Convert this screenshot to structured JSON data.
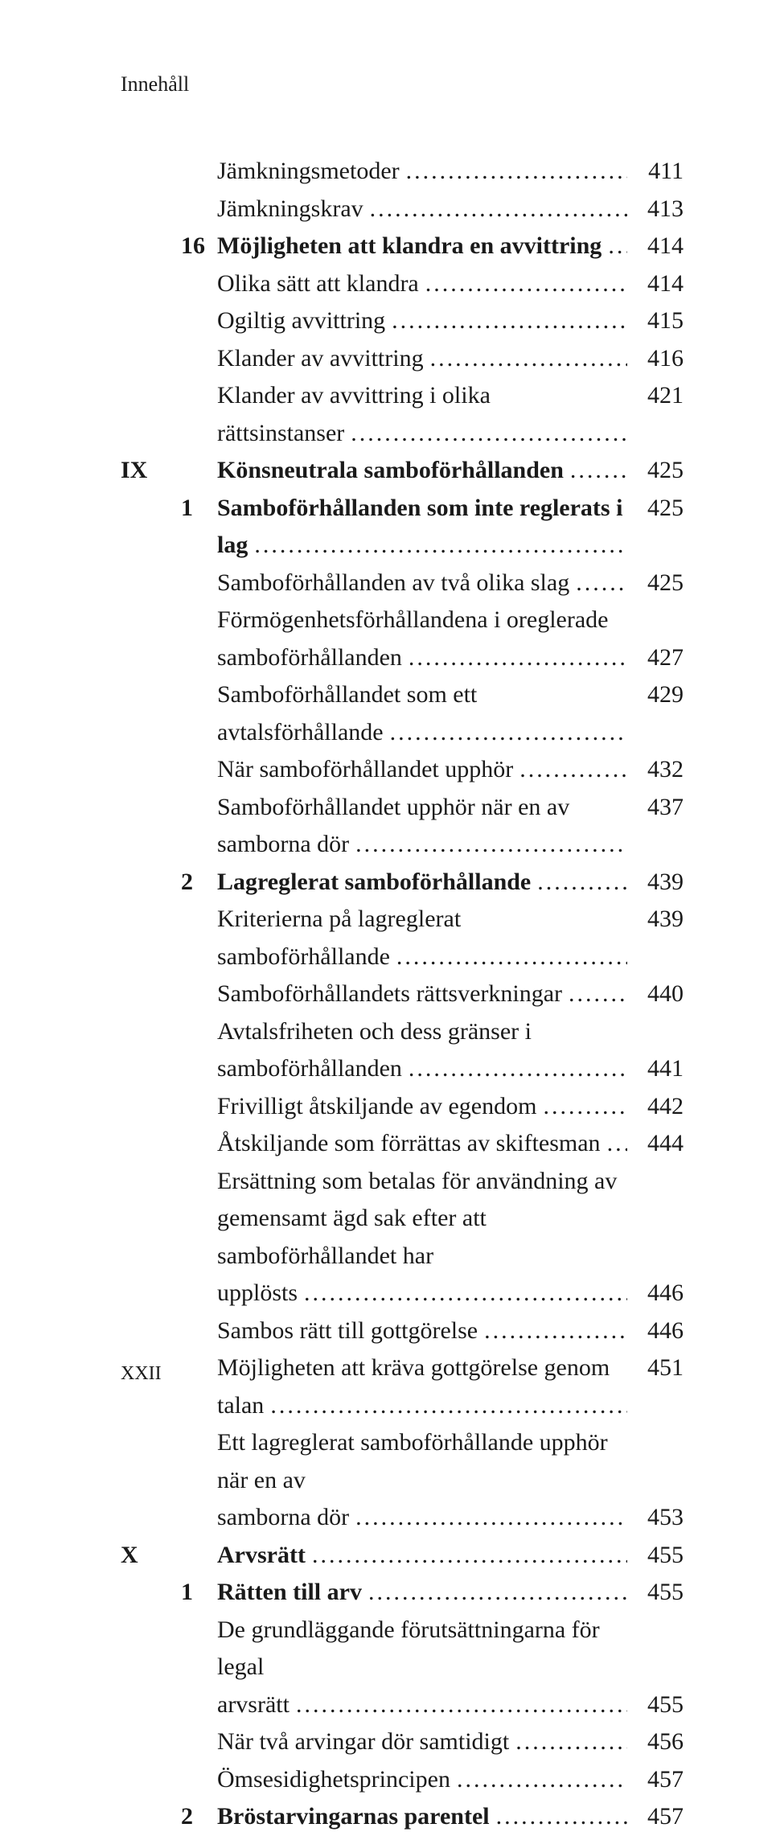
{
  "running_head": "Innehåll",
  "footer": "XXII",
  "entries": [
    {
      "marker": "",
      "num": "",
      "bold": false,
      "text": "Jämkningsmetoder",
      "page": "411"
    },
    {
      "marker": "",
      "num": "",
      "bold": false,
      "text": "Jämkningskrav",
      "page": "413"
    },
    {
      "marker": "",
      "num": "16",
      "bold": true,
      "text": "Möjligheten att klandra en avvittring",
      "page": "414"
    },
    {
      "marker": "",
      "num": "",
      "bold": false,
      "text": "Olika sätt att klandra",
      "page": "414"
    },
    {
      "marker": "",
      "num": "",
      "bold": false,
      "text": "Ogiltig avvittring",
      "page": "415"
    },
    {
      "marker": "",
      "num": "",
      "bold": false,
      "text": "Klander av avvittring",
      "page": "416"
    },
    {
      "marker": "",
      "num": "",
      "bold": false,
      "text": "Klander av avvittring i olika rättsinstanser",
      "page": "421"
    },
    {
      "marker": "IX",
      "num": "",
      "bold": true,
      "text": "Könsneutrala samboförhållanden",
      "page": "425"
    },
    {
      "marker": "",
      "num": "1",
      "bold": true,
      "text": "Samboförhållanden som inte reglerats i lag",
      "page": "425"
    },
    {
      "marker": "",
      "num": "",
      "bold": false,
      "text": "Samboförhållanden av två olika slag",
      "page": "425"
    },
    {
      "marker": "",
      "num": "",
      "bold": false,
      "wrap": true,
      "line1": "Förmögenhetsförhållandena i oreglerade",
      "line2": "samboförhållanden",
      "page": "427"
    },
    {
      "marker": "",
      "num": "",
      "bold": false,
      "text": "Samboförhållandet som ett avtalsförhållande",
      "page": "429"
    },
    {
      "marker": "",
      "num": "",
      "bold": false,
      "text": "När samboförhållandet upphör",
      "page": "432"
    },
    {
      "marker": "",
      "num": "",
      "bold": false,
      "text": "Samboförhållandet upphör när en av samborna dör",
      "page": "437"
    },
    {
      "marker": "",
      "num": "2",
      "bold": true,
      "text": "Lagreglerat samboförhållande",
      "page": "439"
    },
    {
      "marker": "",
      "num": "",
      "bold": false,
      "text": "Kriterierna på lagreglerat samboförhållande",
      "page": "439"
    },
    {
      "marker": "",
      "num": "",
      "bold": false,
      "text": "Samboförhållandets rättsverkningar",
      "page": "440"
    },
    {
      "marker": "",
      "num": "",
      "bold": false,
      "wrap": true,
      "line1": "Avtalsfriheten och dess gränser i",
      "line2": "samboförhållanden",
      "page": "441"
    },
    {
      "marker": "",
      "num": "",
      "bold": false,
      "text": "Frivilligt åtskiljande av egendom",
      "page": "442"
    },
    {
      "marker": "",
      "num": "",
      "bold": false,
      "text": "Åtskiljande som förrättas av skiftesman",
      "page": "444"
    },
    {
      "marker": "",
      "num": "",
      "bold": false,
      "wrap": true,
      "line1": "Ersättning som betalas för användning av",
      "line2_a": "gemensamt ägd sak efter att samboförhållandet har",
      "line2": "upplösts",
      "page": "446"
    },
    {
      "marker": "",
      "num": "",
      "bold": false,
      "text": "Sambos rätt till gottgörelse",
      "page": "446"
    },
    {
      "marker": "",
      "num": "",
      "bold": false,
      "text": "Möjligheten att kräva gottgörelse genom talan",
      "page": "451"
    },
    {
      "marker": "",
      "num": "",
      "bold": false,
      "wrap": true,
      "line1": "Ett lagreglerat samboförhållande upphör när en av",
      "line2": "samborna dör",
      "page": "453"
    },
    {
      "marker": "X",
      "num": "",
      "bold": true,
      "text": "Arvsrätt",
      "page": "455"
    },
    {
      "marker": "",
      "num": "1",
      "bold": true,
      "text": "Rätten till arv",
      "page": "455"
    },
    {
      "marker": "",
      "num": "",
      "bold": false,
      "wrap": true,
      "line1": "De grundläggande förutsättningarna för legal",
      "line2": "arvsrätt",
      "page": "455"
    },
    {
      "marker": "",
      "num": "",
      "bold": false,
      "text": "När två arvingar dör samtidigt",
      "page": "456"
    },
    {
      "marker": "",
      "num": "",
      "bold": false,
      "text": "Ömsesidighetsprincipen",
      "page": "457"
    },
    {
      "marker": "",
      "num": "2",
      "bold": true,
      "text": "Bröstarvingarnas parentel",
      "page": "457"
    }
  ]
}
